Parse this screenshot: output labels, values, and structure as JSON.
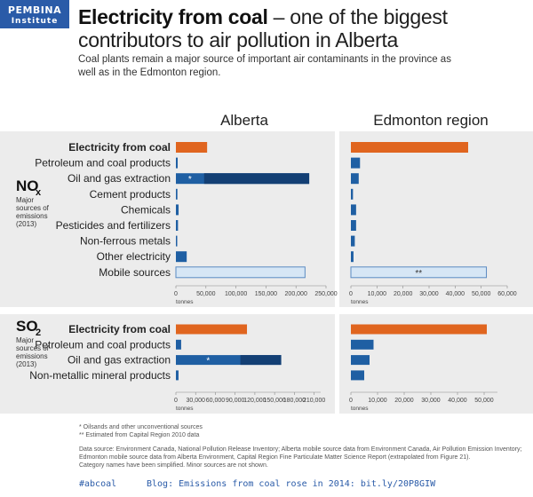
{
  "logo": {
    "line1": "PEMBINA",
    "line2": "Institute"
  },
  "title": {
    "bold": "Electricity from coal",
    "rest": " – one of the biggest contributors to air pollution in Alberta"
  },
  "subtitle": "Coal plants remain a major source of important air contaminants in the province as well as in the Edmonton region.",
  "columns": {
    "left": "Alberta",
    "right": "Edmonton region"
  },
  "colors": {
    "coal": "#e0651f",
    "bar": "#1f5fa3",
    "bar_dark": "#133f74",
    "light": "#d6e6f5",
    "light_stroke": "#5a8ac2",
    "panel": "#ececec"
  },
  "chart_data": [
    {
      "type": "bar",
      "orientation": "horizontal",
      "pollutant": "NOx",
      "side_label": {
        "main": "NO",
        "sub": "x",
        "desc": [
          "Major",
          "sources of",
          "emissions",
          "(2013)"
        ]
      },
      "region": "Alberta",
      "categories": [
        "Electricity from coal",
        "Petroleum and coal products",
        "Oil and gas extraction",
        "Cement products",
        "Chemicals",
        "Pesticides and fertilizers",
        "Non-ferrous metals",
        "Other electricity",
        "Mobile sources"
      ],
      "values": [
        52000,
        3000,
        222000,
        2500,
        4500,
        3500,
        2000,
        18000,
        215000
      ],
      "oilsands_part": 47000,
      "annotations": {
        "2": "*"
      },
      "xlim": [
        0,
        250000
      ],
      "ticks": [
        "0",
        "50,000",
        "100,000",
        "150,000",
        "200,000",
        "250,000"
      ],
      "tick_values": [
        0,
        50000,
        100000,
        150000,
        200000,
        250000
      ],
      "unit": "tonnes"
    },
    {
      "type": "bar",
      "orientation": "horizontal",
      "pollutant": "NOx",
      "region": "Edmonton region",
      "values": [
        45000,
        3500,
        3000,
        800,
        2000,
        2000,
        1500,
        1000,
        52000
      ],
      "annotations": {
        "8": "**"
      },
      "xlim": [
        0,
        60000
      ],
      "ticks": [
        "0",
        "10,000",
        "20,000",
        "30,000",
        "40,000",
        "50,000",
        "60,000"
      ],
      "tick_values": [
        0,
        10000,
        20000,
        30000,
        40000,
        50000,
        60000
      ],
      "unit": "tonnes"
    },
    {
      "type": "bar",
      "orientation": "horizontal",
      "pollutant": "SO2",
      "side_label": {
        "main": "SO",
        "sub": "2",
        "desc": [
          "Major",
          "sources of",
          "emissions",
          "(2013)"
        ]
      },
      "region": "Alberta",
      "categories": [
        "Electricity from coal",
        "Petroleum and coal products",
        "Oil and gas extraction",
        "Non-metallic mineral products"
      ],
      "values": [
        108000,
        8000,
        160000,
        4000
      ],
      "oilsands_part": 98000,
      "annotations": {
        "2": "*"
      },
      "xlim": [
        0,
        220000
      ],
      "ticks": [
        "0",
        "30,000",
        "60,000",
        "90,000",
        "120,000",
        "150,000",
        "180,000",
        "210,000"
      ],
      "tick_values": [
        0,
        30000,
        60000,
        90000,
        120000,
        150000,
        180000,
        210000
      ],
      "unit": "tonnes"
    },
    {
      "type": "bar",
      "orientation": "horizontal",
      "pollutant": "SO2",
      "region": "Edmonton region",
      "values": [
        51000,
        8500,
        7000,
        5000
      ],
      "xlim": [
        0,
        55000
      ],
      "ticks": [
        "0",
        "10,000",
        "20,000",
        "30,000",
        "40,000",
        "50,000"
      ],
      "tick_values": [
        0,
        10000,
        20000,
        30000,
        40000,
        50000
      ],
      "unit": "tonnes"
    }
  ],
  "footnotes": [
    "* Oilsands and other unconventional sources",
    "** Estimated from Capital Region 2010 data"
  ],
  "source_lines": [
    "Data source: Environment Canada, National Pollution Release Inventory; Alberta mobile source data from Environment Canada, Air Pollution Emission Inventory;",
    "Edmonton mobile source data from Alberta Environment, Capital Region Fine Particulate Matter Science Report (extrapolated from Figure 21).",
    "Category names have been simplified. Minor sources are not shown."
  ],
  "bottom": {
    "hashtag": "#abcoal",
    "blog": "Blog: Emissions from coal rose in 2014: bit.ly/20P8GIW"
  }
}
